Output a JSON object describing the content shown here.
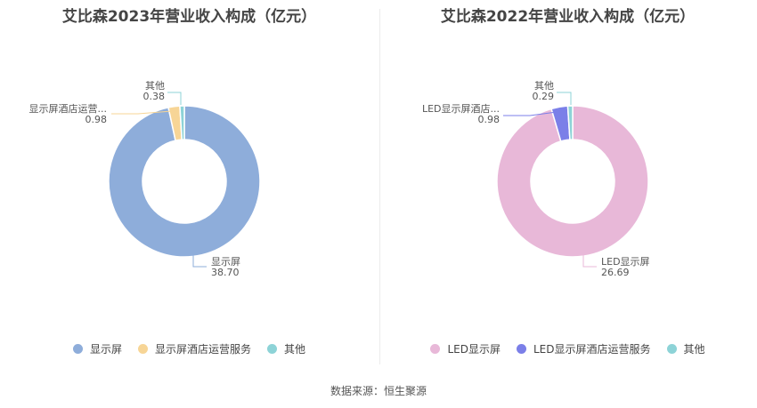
{
  "chart_data": [
    {
      "type": "pie",
      "title": "艾比森2023年营业收入构成（亿元）",
      "categories": [
        "显示屏",
        "显示屏酒店运营服务",
        "其他"
      ],
      "values": [
        38.7,
        0.98,
        0.38
      ],
      "value_labels": [
        "38.70",
        "0.98",
        "0.38"
      ],
      "slice_labels": [
        "显示屏",
        "显示屏酒店运营...",
        "其他"
      ],
      "colors": [
        "#8eadda",
        "#f7d596",
        "#8dd3d7"
      ],
      "legend": "bottom"
    },
    {
      "type": "pie",
      "title": "艾比森2022年营业收入构成（亿元）",
      "categories": [
        "LED显示屏",
        "LED显示屏酒店运营服务",
        "其他"
      ],
      "values": [
        26.69,
        0.98,
        0.29
      ],
      "value_labels": [
        "26.69",
        "0.98",
        "0.29"
      ],
      "slice_labels": [
        "LED显示屏",
        "LED显示屏酒店...",
        "其他"
      ],
      "colors": [
        "#e8b8d8",
        "#7b7fe8",
        "#8dd3d7"
      ],
      "legend": "bottom"
    }
  ],
  "source": "数据来源：恒生聚源"
}
